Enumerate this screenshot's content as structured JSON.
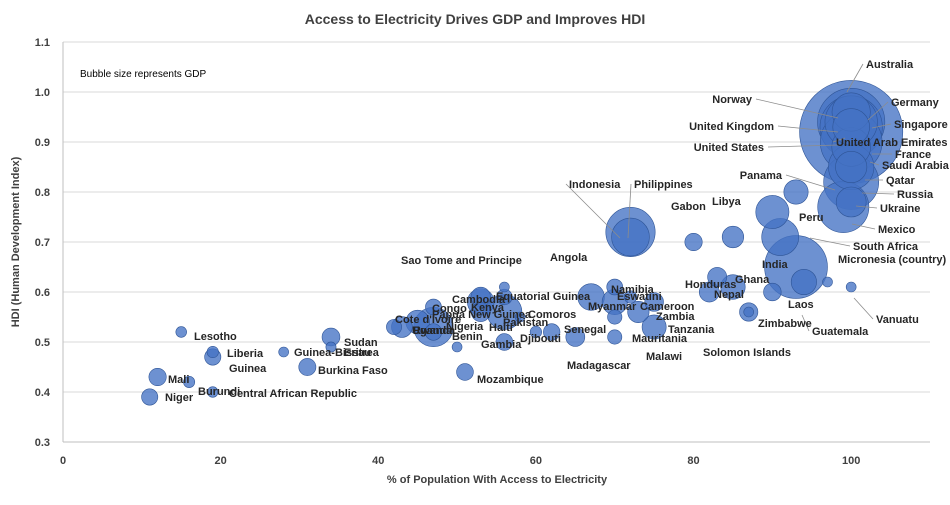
{
  "chart_data": {
    "type": "scatter",
    "title": "Access to Electricity Drives GDP and Improves HDI",
    "xlabel": "% of Population With Access to Electricity",
    "ylabel": "HDI (Human Development Index)",
    "annotation": "Bubble size represents GDP",
    "xlim": [
      0,
      110
    ],
    "ylim": [
      0.3,
      1.1
    ],
    "xticks": [
      0,
      20,
      40,
      60,
      80,
      100
    ],
    "yticks": [
      0.3,
      0.4,
      0.5,
      0.6,
      0.7,
      0.8,
      0.9,
      1.0,
      1.1
    ],
    "grid": "horizontal",
    "color": "#4472c4",
    "points": [
      {
        "name": "Australia",
        "x": 100,
        "y": 0.94,
        "gdp": 1400
      },
      {
        "name": "Norway",
        "x": 100,
        "y": 0.96,
        "gdp": 400
      },
      {
        "name": "Germany",
        "x": 100,
        "y": 0.94,
        "gdp": 3800
      },
      {
        "name": "Singapore",
        "x": 100,
        "y": 0.93,
        "gdp": 340
      },
      {
        "name": "United Kingdom",
        "x": 100,
        "y": 0.93,
        "gdp": 2800
      },
      {
        "name": "United Arab Emirates",
        "x": 100,
        "y": 0.89,
        "gdp": 420
      },
      {
        "name": "United States",
        "x": 100,
        "y": 0.92,
        "gdp": 21000
      },
      {
        "name": "France",
        "x": 100,
        "y": 0.9,
        "gdp": 2700
      },
      {
        "name": "Saudi Arabia",
        "x": 100,
        "y": 0.85,
        "gdp": 790
      },
      {
        "name": "Panama",
        "x": 93,
        "y": 0.8,
        "gdp": 65
      },
      {
        "name": "Qatar",
        "x": 100,
        "y": 0.85,
        "gdp": 180
      },
      {
        "name": "Russia",
        "x": 100,
        "y": 0.82,
        "gdp": 1700
      },
      {
        "name": "Ukraine",
        "x": 100,
        "y": 0.78,
        "gdp": 150
      },
      {
        "name": "Mexico",
        "x": 99,
        "y": 0.77,
        "gdp": 1270
      },
      {
        "name": "Peru",
        "x": 90,
        "y": 0.76,
        "gdp": 225
      },
      {
        "name": "South Africa",
        "x": 91,
        "y": 0.71,
        "gdp": 350
      },
      {
        "name": "Micronesia (country)",
        "x": 97,
        "y": 0.62,
        "gdp": 1
      },
      {
        "name": "Indonesia",
        "x": 72,
        "y": 0.72,
        "gdp": 1100
      },
      {
        "name": "Philippines",
        "x": 72,
        "y": 0.71,
        "gdp": 380
      },
      {
        "name": "Gabon",
        "x": 80,
        "y": 0.7,
        "gdp": 17
      },
      {
        "name": "Libya",
        "x": 85,
        "y": 0.71,
        "gdp": 40
      },
      {
        "name": "India",
        "x": 93,
        "y": 0.65,
        "gdp": 2900
      },
      {
        "name": "Ghana",
        "x": 85,
        "y": 0.61,
        "gdp": 67
      },
      {
        "name": "Honduras",
        "x": 83,
        "y": 0.63,
        "gdp": 25
      },
      {
        "name": "Nepal",
        "x": 82,
        "y": 0.6,
        "gdp": 30
      },
      {
        "name": "Laos",
        "x": 90,
        "y": 0.6,
        "gdp": 18
      },
      {
        "name": "Vanuatu",
        "x": 100,
        "y": 0.61,
        "gdp": 1
      },
      {
        "name": "Guatemala",
        "x": 94,
        "y": 0.62,
        "gdp": 77
      },
      {
        "name": "Zimbabwe",
        "x": 87,
        "y": 0.56,
        "gdp": 21
      },
      {
        "name": "Solomon Islands",
        "x": 87,
        "y": 0.56,
        "gdp": 1.5
      },
      {
        "name": "Angola",
        "x": 67,
        "y": 0.59,
        "gdp": 94
      },
      {
        "name": "Namibia",
        "x": 70,
        "y": 0.61,
        "gdp": 12
      },
      {
        "name": "Eswatini",
        "x": 72,
        "y": 0.59,
        "gdp": 4.5
      },
      {
        "name": "Myanmar",
        "x": 70,
        "y": 0.58,
        "gdp": 76
      },
      {
        "name": "Cameroon",
        "x": 73,
        "y": 0.56,
        "gdp": 39
      },
      {
        "name": "Zambia",
        "x": 75,
        "y": 0.58,
        "gdp": 23
      },
      {
        "name": "Tanzania",
        "x": 75,
        "y": 0.53,
        "gdp": 63
      },
      {
        "name": "Mauritania",
        "x": 70,
        "y": 0.55,
        "gdp": 8
      },
      {
        "name": "Malawi",
        "x": 70,
        "y": 0.51,
        "gdp": 7.7
      },
      {
        "name": "Madagascar",
        "x": 62,
        "y": 0.52,
        "gdp": 14
      },
      {
        "name": "Senegal",
        "x": 65,
        "y": 0.51,
        "gdp": 24
      },
      {
        "name": "Djibouti",
        "x": 60,
        "y": 0.52,
        "gdp": 3.3
      },
      {
        "name": "Comoros",
        "x": 58,
        "y": 0.55,
        "gdp": 1.2
      },
      {
        "name": "Sao Tome and Principe",
        "x": 56,
        "y": 0.61,
        "gdp": 0.4
      },
      {
        "name": "Equatorial Guinea",
        "x": 56,
        "y": 0.59,
        "gdp": 11
      },
      {
        "name": "Cambodia",
        "x": 53,
        "y": 0.59,
        "gdp": 27
      },
      {
        "name": "Kenya",
        "x": 53,
        "y": 0.58,
        "gdp": 95
      },
      {
        "name": "Papua New Guinea",
        "x": 53,
        "y": 0.56,
        "gdp": 25
      },
      {
        "name": "Pakistan",
        "x": 56,
        "y": 0.56,
        "gdp": 280
      },
      {
        "name": "Haiti",
        "x": 56,
        "y": 0.5,
        "gdp": 15
      },
      {
        "name": "Gambia",
        "x": 50,
        "y": 0.49,
        "gdp": 1.8
      },
      {
        "name": "Benin",
        "x": 47,
        "y": 0.52,
        "gdp": 14
      },
      {
        "name": "Nigeria",
        "x": 47,
        "y": 0.53,
        "gdp": 450
      },
      {
        "name": "Congo",
        "x": 47,
        "y": 0.57,
        "gdp": 12
      },
      {
        "name": "Cote d'Ivoire",
        "x": 45,
        "y": 0.54,
        "gdp": 58
      },
      {
        "name": "Uganda",
        "x": 43,
        "y": 0.53,
        "gdp": 35
      },
      {
        "name": "Rwanda",
        "x": 42,
        "y": 0.53,
        "gdp": 10
      },
      {
        "name": "Sudan",
        "x": 34,
        "y": 0.51,
        "gdp": 19
      },
      {
        "name": "Eritrea",
        "x": 34,
        "y": 0.49,
        "gdp": 2
      },
      {
        "name": "Mozambique",
        "x": 51,
        "y": 0.44,
        "gdp": 15
      },
      {
        "name": "Lesotho",
        "x": 15,
        "y": 0.52,
        "gdp": 2.5
      },
      {
        "name": "Liberia",
        "x": 19,
        "y": 0.48,
        "gdp": 3.2
      },
      {
        "name": "Guinea-Bissau",
        "x": 28,
        "y": 0.48,
        "gdp": 1.4
      },
      {
        "name": "Guinea",
        "x": 19,
        "y": 0.47,
        "gdp": 13
      },
      {
        "name": "Burkina Faso",
        "x": 31,
        "y": 0.45,
        "gdp": 16
      },
      {
        "name": "Mali",
        "x": 12,
        "y": 0.43,
        "gdp": 17
      },
      {
        "name": "Burundi",
        "x": 16,
        "y": 0.42,
        "gdp": 3
      },
      {
        "name": "Niger",
        "x": 11,
        "y": 0.39,
        "gdp": 13
      },
      {
        "name": "Central African Republic",
        "x": 19,
        "y": 0.4,
        "gdp": 2.3
      }
    ]
  }
}
